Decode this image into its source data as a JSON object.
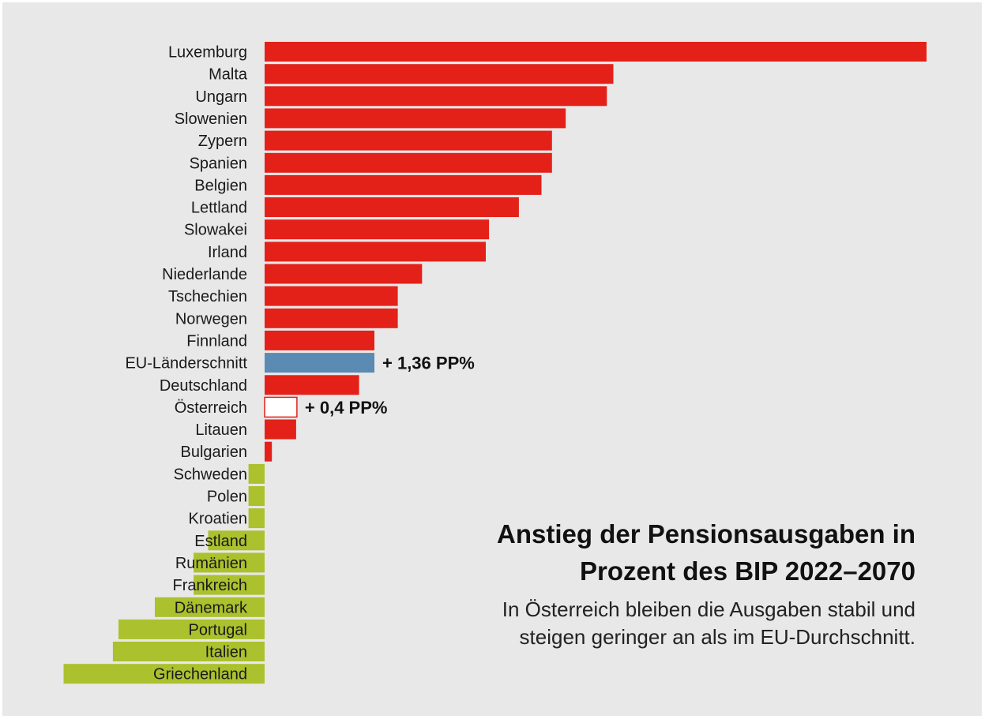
{
  "colors": {
    "increase": "#e32119",
    "decrease": "#abc12d",
    "eu_average": "#5b8ab2",
    "austria_fill": "#ffffff",
    "austria_stroke": "#e32119",
    "background": "#e8e8e8"
  },
  "title": {
    "line1": "Anstieg der Pensionsausgaben in",
    "line2": "Prozent des BIP 2022–2070"
  },
  "subtitle": {
    "line1": "In Österreich bleiben die Ausgaben stabil und",
    "line2": "steigen geringer an als im EU-Durchschnitt."
  },
  "chart_data": {
    "type": "bar",
    "orientation": "horizontal",
    "categories": [
      "Luxemburg",
      "Malta",
      "Ungarn",
      "Slowenien",
      "Zypern",
      "Spanien",
      "Belgien",
      "Lettland",
      "Slowakei",
      "Irland",
      "Niederlande",
      "Tschechien",
      "Norwegen",
      "Finnland",
      "EU-Länderschnitt",
      "Deutschland",
      "Österreich",
      "Litauen",
      "Bulgarien",
      "Schweden",
      "Polen",
      "Kroatien",
      "Estland",
      "Rumänien",
      "Frankreich",
      "Dänemark",
      "Portugal",
      "Italien",
      "Griechenland"
    ],
    "values": [
      8.2,
      4.32,
      4.24,
      3.73,
      3.56,
      3.56,
      3.43,
      3.15,
      2.78,
      2.74,
      1.95,
      1.65,
      1.65,
      1.36,
      1.36,
      1.17,
      0.4,
      0.39,
      0.09,
      -0.2,
      -0.2,
      -0.2,
      -0.7,
      -0.88,
      -0.88,
      -1.36,
      -1.81,
      -1.88,
      -2.49
    ],
    "highlight": {
      "EU-Länderschnitt": "eu_average",
      "Österreich": "austria"
    },
    "annotations": [
      {
        "category": "EU-Länderschnitt",
        "text": "+ 1,36 PP%"
      },
      {
        "category": "Österreich",
        "text": "+ 0,4 PP%"
      }
    ],
    "xlabel": "",
    "ylabel": "",
    "grid": false,
    "legend": false
  }
}
